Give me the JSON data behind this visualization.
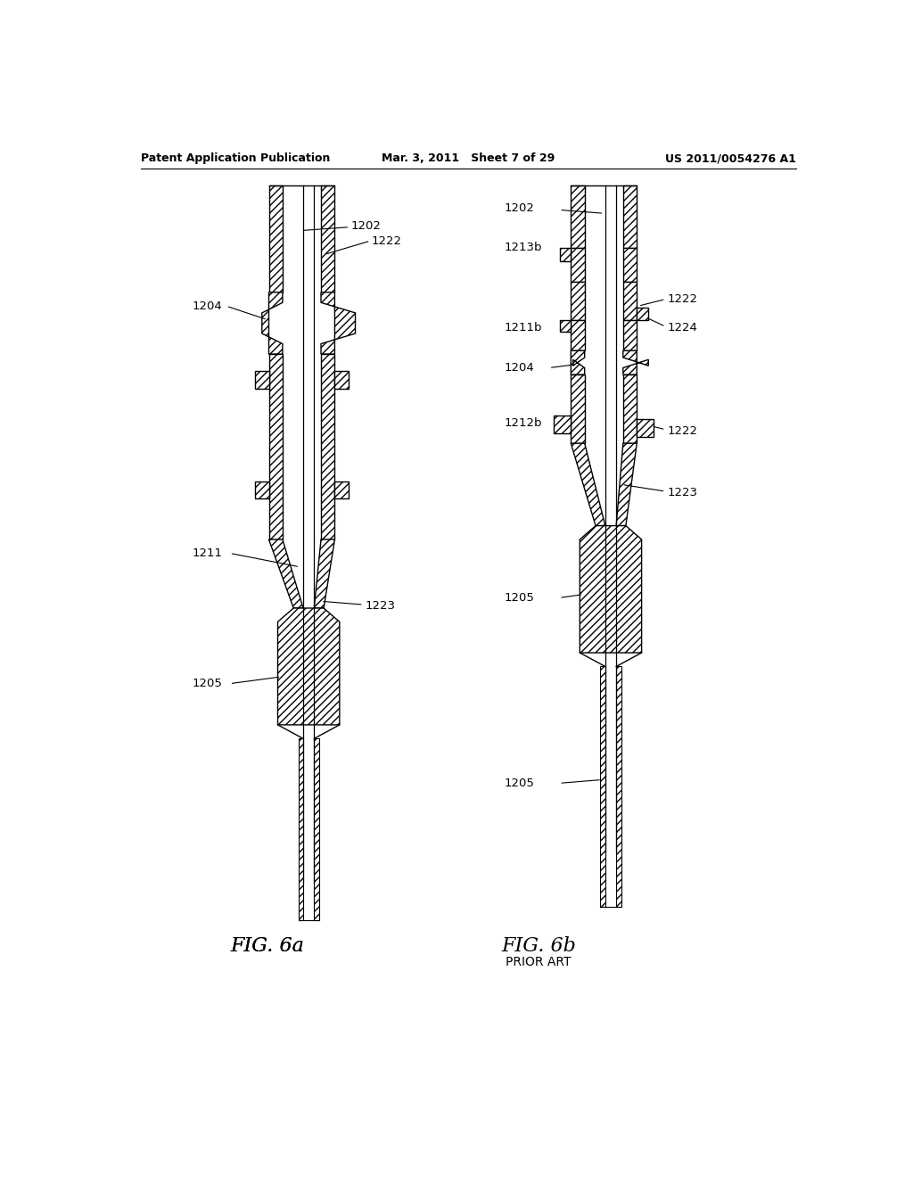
{
  "background_color": "#ffffff",
  "header": {
    "left": "Patent Application Publication",
    "center": "Mar. 3, 2011   Sheet 7 of 29",
    "right": "US 2011/0054276 A1"
  },
  "fig_a_label": "FIG. 6a",
  "fig_b_label": "FIG. 6b",
  "fig_b_sublabel": "PRIOR ART"
}
